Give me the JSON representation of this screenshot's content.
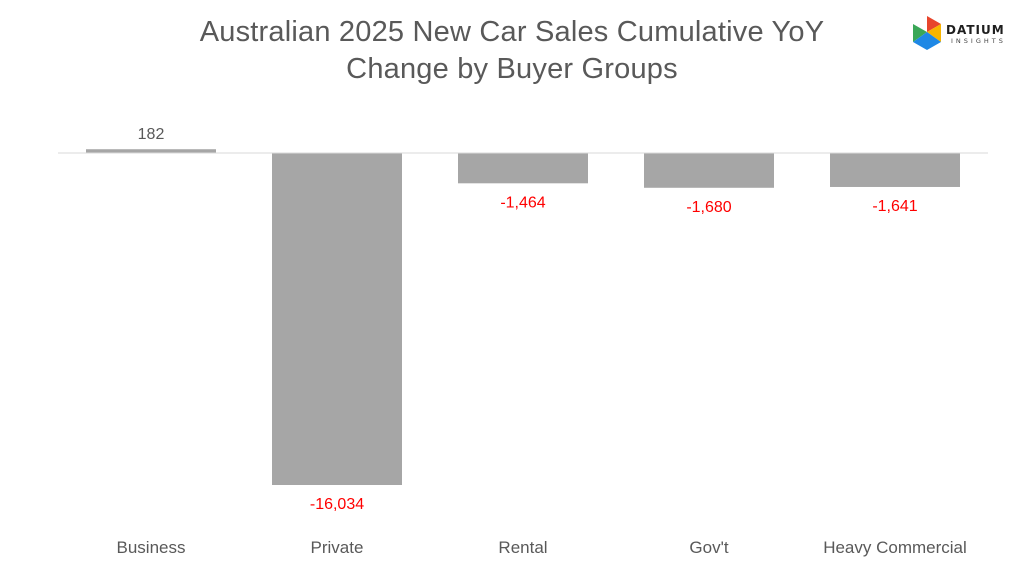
{
  "header": {
    "title_line1": "Australian 2025 New Car Sales Cumulative YoY",
    "title_line2": "Change by Buyer Groups"
  },
  "logo": {
    "word": "DATIUM",
    "sub": "INSIGHTS",
    "mark_colors": [
      "#e8452c",
      "#f7b500",
      "#3aa757",
      "#1e88e5"
    ]
  },
  "chart_data": {
    "type": "bar",
    "title": "Australian 2025 New Car Sales Cumulative YoY Change by Buyer Groups",
    "categories": [
      "Business",
      "Private",
      "Rental",
      "Gov't",
      "Heavy Commercial"
    ],
    "values": [
      182,
      -16034,
      -1464,
      -1680,
      -1641
    ],
    "value_labels": [
      "182",
      "-16,034",
      "-1,464",
      "-1,680",
      "-1,641"
    ],
    "ylim": [
      -16034,
      182
    ],
    "grid": false,
    "legend": "none",
    "colors": {
      "bar": "#a6a6a6",
      "positive_label": "#595959",
      "negative_label": "#ff0000",
      "axis": "#d9d9d9",
      "category_label": "#595959"
    }
  }
}
